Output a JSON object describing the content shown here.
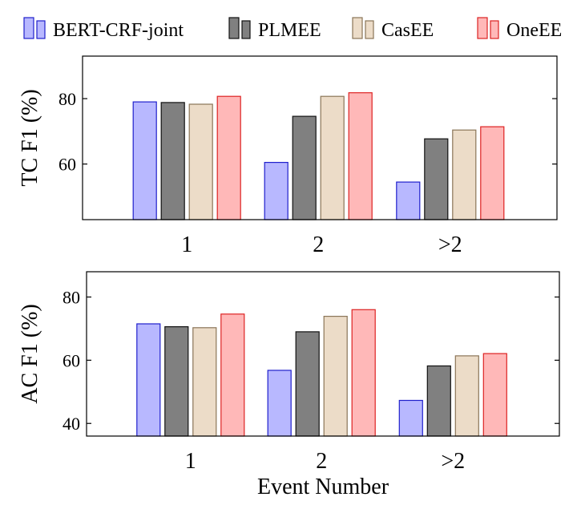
{
  "legend": [
    {
      "name": "BERT-CRF-joint",
      "fill": "#b8b8ff",
      "stroke": "#2020cc"
    },
    {
      "name": "PLMEE",
      "fill": "#808080",
      "stroke": "#111111"
    },
    {
      "name": "CasEE",
      "fill": "#ecdcc8",
      "stroke": "#8a7558"
    },
    {
      "name": "OneEE",
      "fill": "#ffb8b8",
      "stroke": "#dd2222"
    }
  ],
  "chart_data": [
    {
      "type": "bar",
      "title": "",
      "xlabel": "",
      "ylabel": "TC F1 (%)",
      "categories": [
        "1",
        "2",
        ">2"
      ],
      "ylim": [
        43,
        93
      ],
      "yticks": [
        60,
        80
      ],
      "grid": false,
      "series": [
        {
          "name": "BERT-CRF-joint",
          "values": [
            79.0,
            60.5,
            54.5
          ]
        },
        {
          "name": "PLMEE",
          "values": [
            78.8,
            74.6,
            67.7
          ]
        },
        {
          "name": "CasEE",
          "values": [
            78.3,
            80.7,
            70.4
          ]
        },
        {
          "name": "OneEE",
          "values": [
            80.7,
            81.8,
            71.4
          ]
        }
      ]
    },
    {
      "type": "bar",
      "title": "",
      "xlabel": "Event Number",
      "ylabel": "AC F1 (%)",
      "categories": [
        "1",
        "2",
        ">2"
      ],
      "ylim": [
        36,
        88
      ],
      "yticks": [
        40,
        60,
        80
      ],
      "grid": false,
      "series": [
        {
          "name": "BERT-CRF-joint",
          "values": [
            71.5,
            56.8,
            47.3
          ]
        },
        {
          "name": "PLMEE",
          "values": [
            70.6,
            69.0,
            58.2
          ]
        },
        {
          "name": "CasEE",
          "values": [
            70.3,
            73.9,
            61.4
          ]
        },
        {
          "name": "OneEE",
          "values": [
            74.6,
            76.0,
            62.1
          ]
        }
      ]
    }
  ]
}
